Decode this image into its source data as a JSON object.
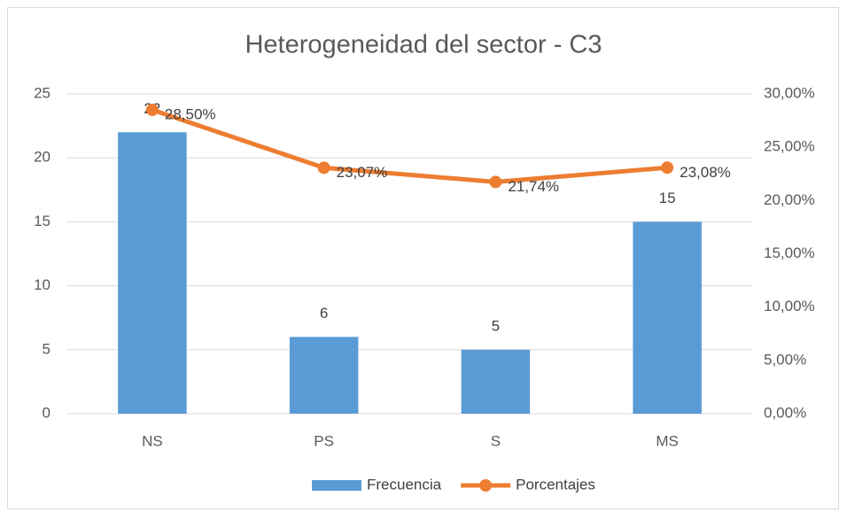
{
  "chart_data": {
    "type": "combo",
    "title": "Heterogeneidad del sector - C3",
    "categories": [
      "NS",
      "PS",
      "S",
      "MS"
    ],
    "series": [
      {
        "name": "Frecuencia",
        "type": "bar",
        "color": "#5b9bd5",
        "values": [
          22,
          6,
          5,
          15
        ]
      },
      {
        "name": "Porcentajes",
        "type": "line",
        "axis": "y2",
        "color": "#ed7d31",
        "values": [
          28.5,
          23.07,
          21.74,
          23.08
        ],
        "value_labels": [
          "28,50%",
          "23,07%",
          "21,74%",
          "23,08%"
        ]
      }
    ],
    "ylim": [
      0,
      25
    ],
    "yticks": [
      0,
      5,
      10,
      15,
      20,
      25
    ],
    "y2lim": [
      0,
      30
    ],
    "y2ticks": [
      {
        "value": 0,
        "label": "0,00%"
      },
      {
        "value": 5,
        "label": "5,00%"
      },
      {
        "value": 10,
        "label": "10,00%"
      },
      {
        "value": 15,
        "label": "15,00%"
      },
      {
        "value": 20,
        "label": "20,00%"
      },
      {
        "value": 25,
        "label": "25,00%"
      },
      {
        "value": 30,
        "label": "30,00%"
      }
    ],
    "grid": true,
    "legend": "bottom"
  }
}
